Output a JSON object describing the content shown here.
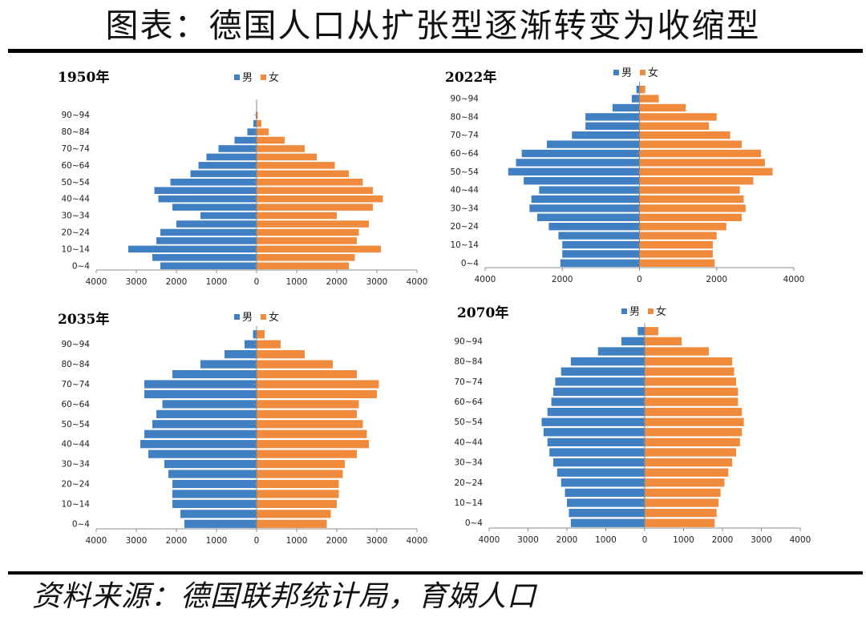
{
  "title": "图表：德国人口从扩张型逐渐转变为收缩型",
  "source": "资料来源：德国联邦统计局，育娲人口",
  "colors": {
    "male": "#3F7FC2",
    "female": "#F08A3C",
    "axis": "#8c8c8c"
  },
  "legend": {
    "male": "男",
    "female": "女"
  },
  "chart_data": [
    {
      "type": "bar",
      "orientation": "horizontal-population-pyramid",
      "title": "1950年",
      "categories": [
        "0~4",
        "5~9",
        "10~14",
        "15~19",
        "20~24",
        "25~29",
        "30~34",
        "35~39",
        "40~44",
        "45~49",
        "50~54",
        "55~59",
        "60~64",
        "65~69",
        "70~74",
        "75~79",
        "80~84",
        "85~89",
        "90~94",
        "95+"
      ],
      "y_tick_labels": [
        "0~4",
        "10~14",
        "20~24",
        "30~34",
        "40~44",
        "50~54",
        "60~64",
        "70~74",
        "80~84",
        "90~94"
      ],
      "x_tick_labels": [
        "4000",
        "3000",
        "2000",
        "1000",
        "0",
        "1000",
        "2000",
        "3000",
        "4000"
      ],
      "xlim": [
        -4000,
        4000
      ],
      "series": [
        {
          "name": "男",
          "values": [
            2400,
            2600,
            3200,
            2500,
            2400,
            2000,
            1400,
            2100,
            2450,
            2550,
            2150,
            1650,
            1450,
            1250,
            950,
            550,
            230,
            80,
            20,
            5
          ]
        },
        {
          "name": "女",
          "values": [
            2300,
            2450,
            3100,
            2500,
            2550,
            2800,
            2000,
            2900,
            3150,
            2900,
            2650,
            2300,
            1950,
            1500,
            1200,
            700,
            300,
            120,
            30,
            8
          ]
        }
      ]
    },
    {
      "type": "bar",
      "orientation": "horizontal-population-pyramid",
      "title": "2022年",
      "categories": [
        "0~4",
        "5~9",
        "10~14",
        "15~19",
        "20~24",
        "25~29",
        "30~34",
        "35~39",
        "40~44",
        "45~49",
        "50~54",
        "55~59",
        "60~64",
        "65~69",
        "70~74",
        "75~79",
        "80~84",
        "85~89",
        "90~94",
        "95+"
      ],
      "y_tick_labels": [
        "0~4",
        "10~14",
        "20~24",
        "30~34",
        "40~44",
        "50~54",
        "60~64",
        "70~74",
        "80~84",
        "90~94"
      ],
      "x_tick_labels": [
        "4000",
        "2000",
        "0",
        "2000",
        "4000"
      ],
      "xlim": [
        -4000,
        4000
      ],
      "series": [
        {
          "name": "男",
          "values": [
            2050,
            2000,
            2000,
            2100,
            2350,
            2650,
            2850,
            2800,
            2600,
            3000,
            3400,
            3200,
            3050,
            2400,
            1750,
            1400,
            1400,
            700,
            200,
            80
          ]
        },
        {
          "name": "女",
          "values": [
            1950,
            1900,
            1900,
            2000,
            2250,
            2650,
            2750,
            2700,
            2600,
            2950,
            3450,
            3250,
            3150,
            2650,
            2350,
            1800,
            2000,
            1200,
            500,
            150
          ]
        }
      ]
    },
    {
      "type": "bar",
      "orientation": "horizontal-population-pyramid",
      "title": "2035年",
      "categories": [
        "0~4",
        "5~9",
        "10~14",
        "15~19",
        "20~24",
        "25~29",
        "30~34",
        "35~39",
        "40~44",
        "45~49",
        "50~54",
        "55~59",
        "60~64",
        "65~69",
        "70~74",
        "75~79",
        "80~84",
        "85~89",
        "90~94",
        "95+"
      ],
      "y_tick_labels": [
        "0~4",
        "10~14",
        "20~24",
        "30~34",
        "40~44",
        "50~54",
        "60~64",
        "70~74",
        "80~84",
        "90~94"
      ],
      "x_tick_labels": [
        "4000",
        "3000",
        "2000",
        "1000",
        "0",
        "1000",
        "2000",
        "3000",
        "4000"
      ],
      "xlim": [
        -4000,
        4000
      ],
      "series": [
        {
          "name": "男",
          "values": [
            1800,
            1900,
            2100,
            2100,
            2100,
            2200,
            2300,
            2700,
            2900,
            2800,
            2600,
            2500,
            2350,
            2800,
            2800,
            2100,
            1400,
            800,
            300,
            90
          ]
        },
        {
          "name": "女",
          "values": [
            1750,
            1850,
            2000,
            2050,
            2050,
            2150,
            2200,
            2500,
            2800,
            2750,
            2650,
            2500,
            2550,
            3000,
            3050,
            2500,
            1900,
            1200,
            600,
            200
          ]
        }
      ]
    },
    {
      "type": "bar",
      "orientation": "horizontal-population-pyramid",
      "title": "2070年",
      "categories": [
        "0~4",
        "5~9",
        "10~14",
        "15~19",
        "20~24",
        "25~29",
        "30~34",
        "35~39",
        "40~44",
        "45~49",
        "50~54",
        "55~59",
        "60~64",
        "65~69",
        "70~74",
        "75~79",
        "80~84",
        "85~89",
        "90~94",
        "95+"
      ],
      "y_tick_labels": [
        "0~4",
        "10~14",
        "20~24",
        "30~34",
        "40~44",
        "50~54",
        "60~64",
        "70~74",
        "80~84",
        "90~94"
      ],
      "x_tick_labels": [
        "4000",
        "3000",
        "2000",
        "1000",
        "0",
        "1000",
        "2000",
        "3000",
        "4000"
      ],
      "xlim": [
        -4000,
        4000
      ],
      "series": [
        {
          "name": "男",
          "values": [
            1900,
            1950,
            2000,
            2050,
            2150,
            2250,
            2350,
            2450,
            2500,
            2600,
            2650,
            2500,
            2400,
            2350,
            2300,
            2150,
            1900,
            1200,
            600,
            180
          ]
        },
        {
          "name": "女",
          "values": [
            1800,
            1850,
            1900,
            1950,
            2050,
            2150,
            2250,
            2350,
            2450,
            2500,
            2550,
            2500,
            2400,
            2400,
            2350,
            2300,
            2250,
            1650,
            950,
            350
          ]
        }
      ]
    }
  ]
}
